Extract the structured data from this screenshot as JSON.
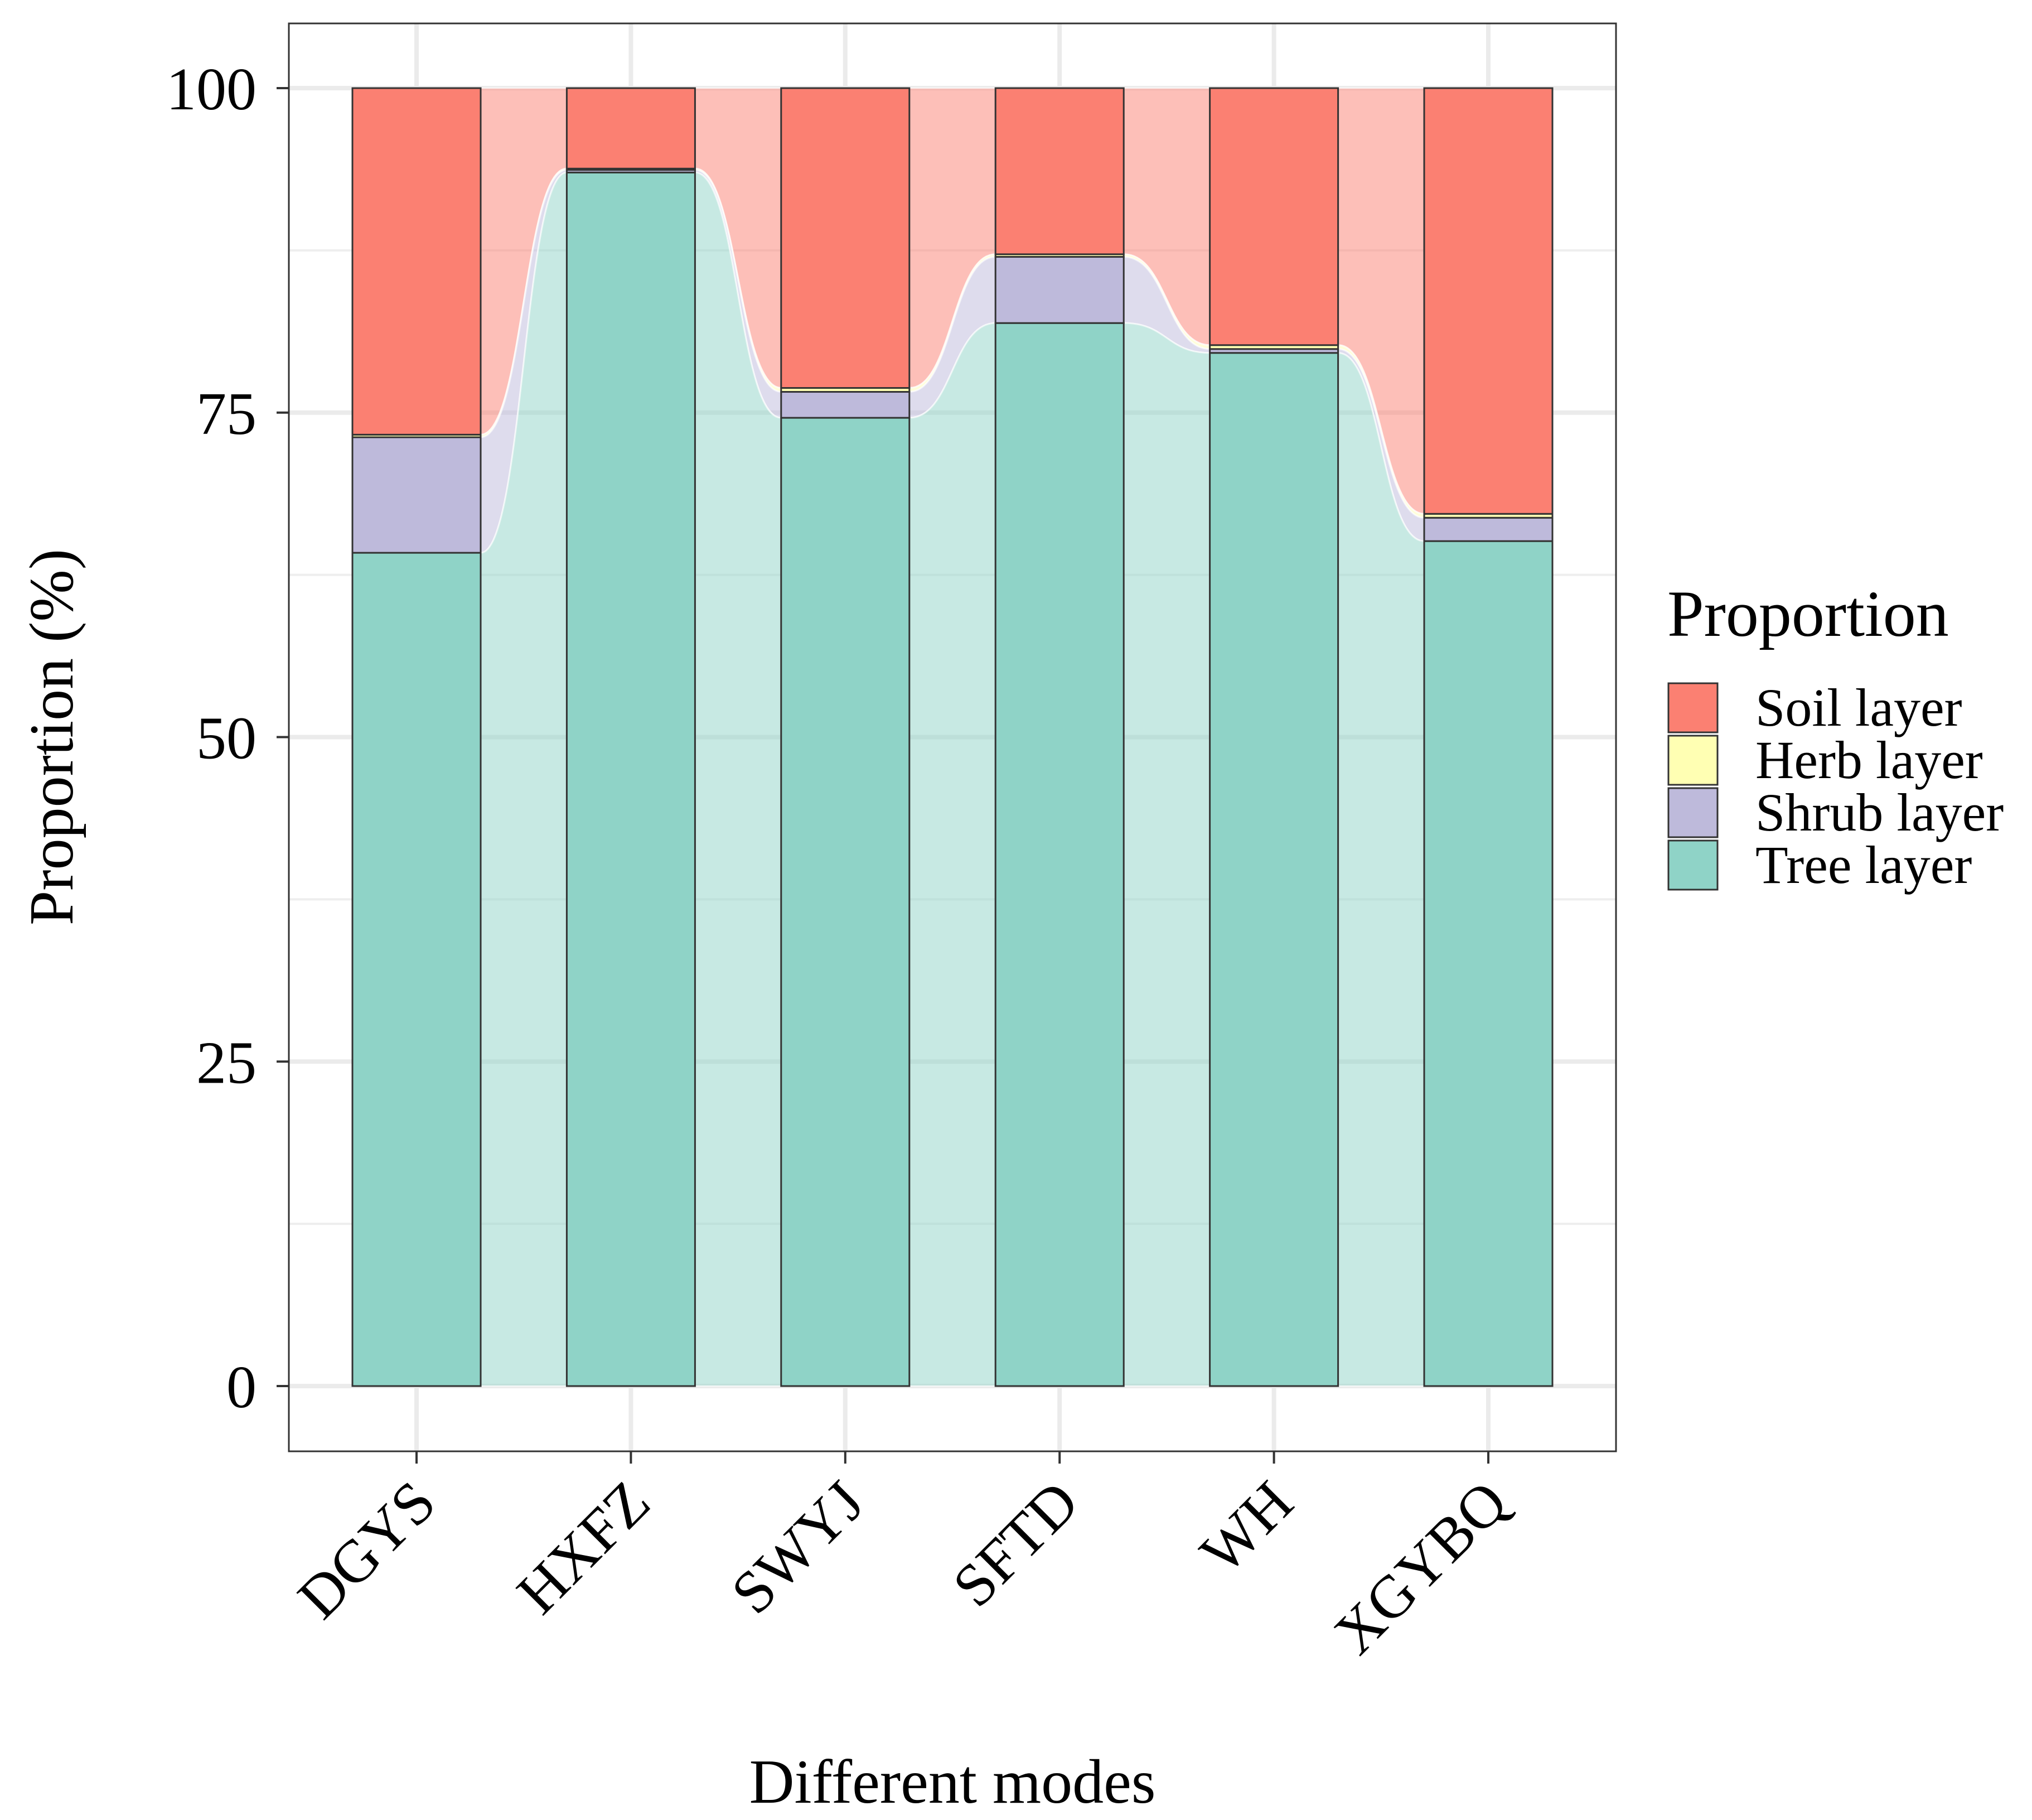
{
  "chart_data": {
    "type": "bar",
    "stacked": true,
    "title": "",
    "xlabel": "Different modes",
    "ylabel": "Proportion (%)",
    "ylim": [
      0,
      110
    ],
    "yticks": [
      0,
      25,
      50,
      75,
      100
    ],
    "grid": true,
    "categories": [
      "DGYS",
      "HXFZ",
      "SWYJ",
      "SFTD",
      "WH",
      "XGYBQ"
    ],
    "series": [
      {
        "name": "Tree layer",
        "color": "#8fd3c7",
        "values": [
          64.2,
          93.5,
          74.6,
          81.9,
          79.6,
          65.1
        ]
      },
      {
        "name": "Shrub layer",
        "color": "#bebadb",
        "values": [
          8.9,
          0.2,
          2.0,
          5.1,
          0.3,
          1.8
        ]
      },
      {
        "name": "Herb layer",
        "color": "#ffffb3",
        "values": [
          0.2,
          0.1,
          0.3,
          0.2,
          0.3,
          0.3
        ]
      },
      {
        "name": "Soil layer",
        "color": "#fb8072",
        "values": [
          26.7,
          6.2,
          23.1,
          12.8,
          19.8,
          32.8
        ]
      }
    ],
    "legend": {
      "title": "Proportion",
      "position": "right",
      "order": [
        "Soil layer",
        "Herb layer",
        "Shrub layer",
        "Tree layer"
      ]
    }
  }
}
